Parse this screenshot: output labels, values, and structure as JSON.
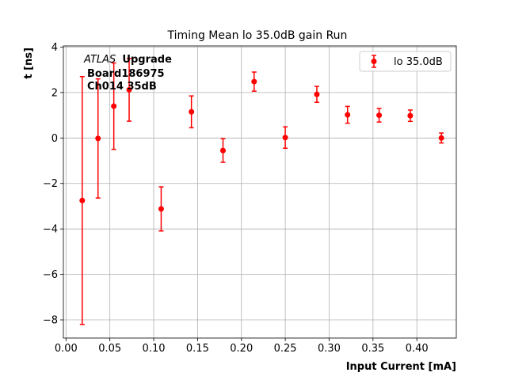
{
  "chart_data": {
    "type": "scatter",
    "title": "Timing Mean lo 35.0dB gain Run",
    "xlabel": "Input Current [mA]",
    "ylabel": "t [ns]",
    "xlim": [
      -0.003,
      0.445
    ],
    "ylim": [
      -8.8,
      4.05
    ],
    "xticks": [
      0.0,
      0.05,
      0.1,
      0.15,
      0.2,
      0.25,
      0.3,
      0.35,
      0.4
    ],
    "xtick_labels": [
      "0.00",
      "0.05",
      "0.10",
      "0.15",
      "0.20",
      "0.25",
      "0.30",
      "0.35",
      "0.40"
    ],
    "yticks": [
      4,
      2,
      0,
      -2,
      -4,
      -6,
      -8
    ],
    "ytick_labels": [
      "4",
      "2",
      "0",
      "−2",
      "−4",
      "−6",
      "−8"
    ],
    "grid": true,
    "legend_position": "top-right",
    "annotations": {
      "experiment": "ATLAS",
      "tag": "Upgrade",
      "board": "Board186975",
      "channel": "Ch014 35dB"
    },
    "series": [
      {
        "name": "lo 35.0dB",
        "color": "#ff0000",
        "marker": "circle",
        "points": [
          {
            "x": 0.0185,
            "y": -2.75,
            "err": 5.45
          },
          {
            "x": 0.0365,
            "y": -0.02,
            "err": 2.62
          },
          {
            "x": 0.0545,
            "y": 1.4,
            "err": 1.9
          },
          {
            "x": 0.072,
            "y": 2.12,
            "err": 1.38
          },
          {
            "x": 0.1085,
            "y": -3.12,
            "err": 0.97
          },
          {
            "x": 0.143,
            "y": 1.15,
            "err": 0.7
          },
          {
            "x": 0.179,
            "y": -0.55,
            "err": 0.52
          },
          {
            "x": 0.2145,
            "y": 2.48,
            "err": 0.42
          },
          {
            "x": 0.25,
            "y": 0.02,
            "err": 0.47
          },
          {
            "x": 0.286,
            "y": 1.92,
            "err": 0.35
          },
          {
            "x": 0.321,
            "y": 1.02,
            "err": 0.37
          },
          {
            "x": 0.357,
            "y": 1.0,
            "err": 0.3
          },
          {
            "x": 0.3925,
            "y": 0.98,
            "err": 0.25
          },
          {
            "x": 0.428,
            "y": 0.0,
            "err": 0.22
          }
        ]
      }
    ]
  }
}
